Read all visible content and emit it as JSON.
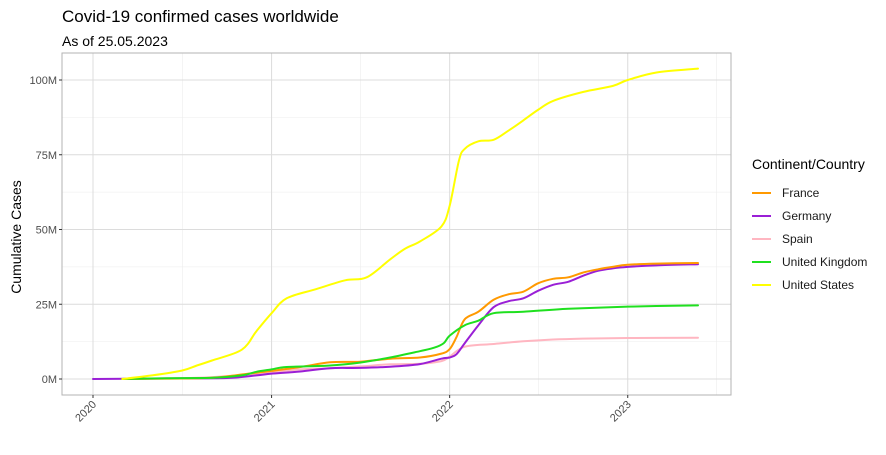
{
  "chart_data": {
    "type": "line",
    "title": "Covid-19 confirmed cases worldwide",
    "subtitle": "As of 25.05.2023",
    "xlabel": "",
    "ylabel": "Cumulative Cases",
    "legend_title": "Continent/Country",
    "legend_position": "right",
    "grid": true,
    "xlim": [
      "2020-01-01",
      "2023-05-25"
    ],
    "ylim": [
      0,
      108000000
    ],
    "x_ticks": [
      "2020-01-01",
      "2021-01-01",
      "2022-01-01",
      "2023-01-01"
    ],
    "x_tick_labels": [
      "2020",
      "2021",
      "2022",
      "2023"
    ],
    "y_ticks": [
      0,
      25000000,
      50000000,
      75000000,
      100000000
    ],
    "y_tick_labels": [
      "0M",
      "25M",
      "50M",
      "75M",
      "100M"
    ],
    "series": [
      {
        "name": "France",
        "color": "#FF9900",
        "points": [
          [
            "2020-03-01",
            0
          ],
          [
            "2020-06-01",
            150000
          ],
          [
            "2020-09-01",
            400000
          ],
          [
            "2020-11-15",
            1800000
          ],
          [
            "2021-01-01",
            2700000
          ],
          [
            "2021-03-01",
            4000000
          ],
          [
            "2021-05-01",
            5600000
          ],
          [
            "2021-07-01",
            5800000
          ],
          [
            "2021-09-01",
            6800000
          ],
          [
            "2021-11-01",
            7200000
          ],
          [
            "2021-12-15",
            8500000
          ],
          [
            "2022-01-01",
            10000000
          ],
          [
            "2022-01-15",
            14000000
          ],
          [
            "2022-02-01",
            20000000
          ],
          [
            "2022-03-01",
            22500000
          ],
          [
            "2022-04-01",
            26500000
          ],
          [
            "2022-05-01",
            28300000
          ],
          [
            "2022-06-01",
            29200000
          ],
          [
            "2022-07-01",
            32000000
          ],
          [
            "2022-08-01",
            33500000
          ],
          [
            "2022-09-01",
            34000000
          ],
          [
            "2022-10-01",
            35600000
          ],
          [
            "2022-11-01",
            36700000
          ],
          [
            "2022-12-01",
            37500000
          ],
          [
            "2023-01-01",
            38200000
          ],
          [
            "2023-03-01",
            38600000
          ],
          [
            "2023-05-25",
            38800000
          ]
        ]
      },
      {
        "name": "Germany",
        "color": "#9A1FD6",
        "points": [
          [
            "2020-01-01",
            0
          ],
          [
            "2020-06-01",
            180000
          ],
          [
            "2020-10-01",
            350000
          ],
          [
            "2020-12-01",
            1200000
          ],
          [
            "2021-01-01",
            1800000
          ],
          [
            "2021-03-01",
            2500000
          ],
          [
            "2021-05-01",
            3600000
          ],
          [
            "2021-07-01",
            3700000
          ],
          [
            "2021-09-01",
            4100000
          ],
          [
            "2021-11-01",
            5000000
          ],
          [
            "2021-12-15",
            6800000
          ],
          [
            "2022-01-01",
            7200000
          ],
          [
            "2022-01-15",
            8300000
          ],
          [
            "2022-02-01",
            12000000
          ],
          [
            "2022-03-01",
            18000000
          ],
          [
            "2022-04-01",
            24000000
          ],
          [
            "2022-05-01",
            26000000
          ],
          [
            "2022-06-01",
            27000000
          ],
          [
            "2022-07-01",
            29500000
          ],
          [
            "2022-08-01",
            31500000
          ],
          [
            "2022-09-01",
            32500000
          ],
          [
            "2022-10-01",
            34500000
          ],
          [
            "2022-11-01",
            36200000
          ],
          [
            "2022-12-01",
            37000000
          ],
          [
            "2023-01-01",
            37500000
          ],
          [
            "2023-03-01",
            38000000
          ],
          [
            "2023-05-25",
            38400000
          ]
        ]
      },
      {
        "name": "Spain",
        "color": "#FFB6C1",
        "points": [
          [
            "2020-03-01",
            0
          ],
          [
            "2020-06-01",
            250000
          ],
          [
            "2020-09-01",
            600000
          ],
          [
            "2020-12-01",
            1800000
          ],
          [
            "2021-01-01",
            2200000
          ],
          [
            "2021-03-01",
            3200000
          ],
          [
            "2021-05-01",
            3600000
          ],
          [
            "2021-07-01",
            4200000
          ],
          [
            "2021-09-01",
            4900000
          ],
          [
            "2021-11-01",
            5100000
          ],
          [
            "2021-12-15",
            6000000
          ],
          [
            "2022-01-01",
            7500000
          ],
          [
            "2022-02-01",
            10800000
          ],
          [
            "2022-04-01",
            11700000
          ],
          [
            "2022-06-01",
            12600000
          ],
          [
            "2022-08-01",
            13200000
          ],
          [
            "2022-10-01",
            13500000
          ],
          [
            "2023-01-01",
            13700000
          ],
          [
            "2023-05-25",
            13800000
          ]
        ]
      },
      {
        "name": "United Kingdom",
        "color": "#1FE01F",
        "points": [
          [
            "2020-03-01",
            0
          ],
          [
            "2020-06-01",
            280000
          ],
          [
            "2020-09-01",
            400000
          ],
          [
            "2020-11-01",
            1200000
          ],
          [
            "2020-12-01",
            2400000
          ],
          [
            "2021-01-01",
            3200000
          ],
          [
            "2021-02-01",
            4000000
          ],
          [
            "2021-05-01",
            4500000
          ],
          [
            "2021-07-01",
            5500000
          ],
          [
            "2021-09-01",
            7200000
          ],
          [
            "2021-11-01",
            9300000
          ],
          [
            "2021-12-01",
            10500000
          ],
          [
            "2021-12-20",
            12000000
          ],
          [
            "2022-01-01",
            14500000
          ],
          [
            "2022-02-01",
            18000000
          ],
          [
            "2022-03-01",
            19500000
          ],
          [
            "2022-04-01",
            22000000
          ],
          [
            "2022-06-01",
            22500000
          ],
          [
            "2022-09-01",
            23500000
          ],
          [
            "2023-01-01",
            24200000
          ],
          [
            "2023-05-25",
            24600000
          ]
        ]
      },
      {
        "name": "United States",
        "color": "#FFFF00",
        "points": [
          [
            "2020-03-01",
            0
          ],
          [
            "2020-05-01",
            1200000
          ],
          [
            "2020-07-01",
            2800000
          ],
          [
            "2020-08-01",
            4500000
          ],
          [
            "2020-09-01",
            6200000
          ],
          [
            "2020-11-01",
            9800000
          ],
          [
            "2020-12-01",
            16000000
          ],
          [
            "2021-01-01",
            22000000
          ],
          [
            "2021-02-01",
            27000000
          ],
          [
            "2021-04-01",
            30000000
          ],
          [
            "2021-06-01",
            33000000
          ],
          [
            "2021-07-15",
            34000000
          ],
          [
            "2021-09-01",
            40000000
          ],
          [
            "2021-10-01",
            43500000
          ],
          [
            "2021-11-01",
            46000000
          ],
          [
            "2021-12-15",
            51000000
          ],
          [
            "2022-01-01",
            58000000
          ],
          [
            "2022-01-20",
            73000000
          ],
          [
            "2022-02-01",
            77000000
          ],
          [
            "2022-03-01",
            79500000
          ],
          [
            "2022-04-01",
            80000000
          ],
          [
            "2022-05-01",
            83000000
          ],
          [
            "2022-06-01",
            86500000
          ],
          [
            "2022-07-01",
            90000000
          ],
          [
            "2022-08-01",
            93000000
          ],
          [
            "2022-10-01",
            96000000
          ],
          [
            "2022-12-01",
            98000000
          ],
          [
            "2023-01-01",
            100000000
          ],
          [
            "2023-03-01",
            102500000
          ],
          [
            "2023-05-25",
            103800000
          ]
        ]
      }
    ]
  }
}
